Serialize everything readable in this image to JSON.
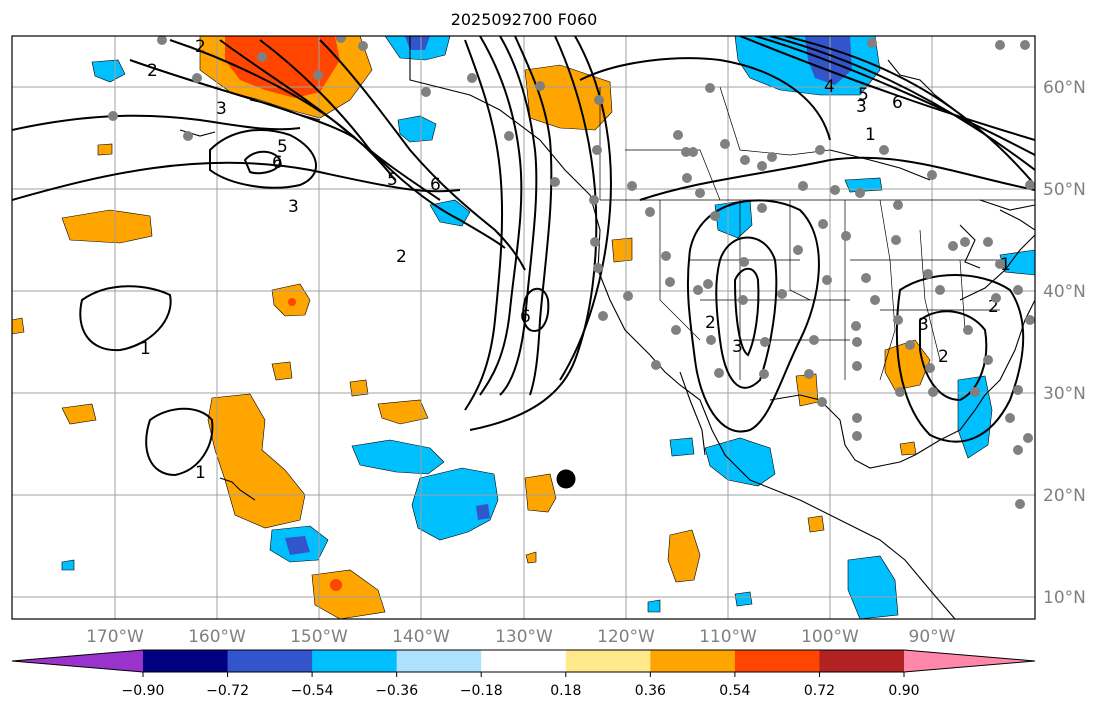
{
  "title": "2025092700 F060",
  "map": {
    "longitude_labels": [
      "170°W",
      "160°W",
      "150°W",
      "140°W",
      "130°W",
      "120°W",
      "110°W",
      "100°W",
      "90°W"
    ],
    "latitude_labels": [
      "60°N",
      "50°N",
      "40°N",
      "30°N",
      "20°N",
      "10°N"
    ],
    "contour_labels": [
      "1",
      "1",
      "2",
      "2",
      "3",
      "5",
      "6",
      "5",
      "6",
      "6",
      "3",
      "2",
      "2",
      "3",
      "2",
      "3",
      "1",
      "4",
      "5",
      "6",
      "1",
      "2",
      "3"
    ],
    "station_marker": "large-black-dot"
  },
  "colorbar": {
    "tick_labels": [
      "−0.90",
      "−0.72",
      "−0.54",
      "−0.36",
      "−0.18",
      "0.18",
      "0.36",
      "0.54",
      "0.72",
      "0.90"
    ],
    "colors": [
      "#9933cc",
      "#000080",
      "#3355cc",
      "#00bfff",
      "#aee0ff",
      "#ffffff",
      "#ffe98a",
      "#ffa500",
      "#ff4500",
      "#b22222",
      "#ff88aa"
    ]
  }
}
